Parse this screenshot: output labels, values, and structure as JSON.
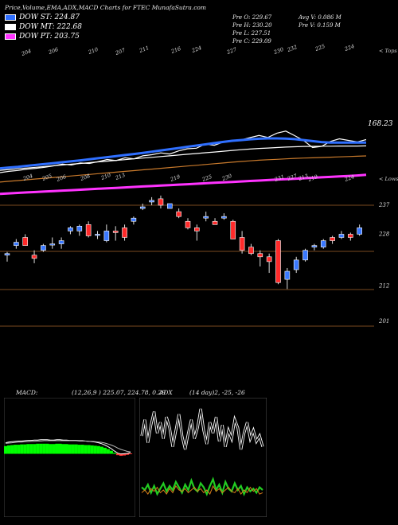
{
  "header": {
    "title": "Price,Volume,EMA,ADX,MACD Charts for FTEC MunafaSutra.com",
    "stats_left": [
      "Pre   O: 229.67",
      "Pre   H: 230.20",
      "Pre   L: 227.51",
      "Pre   C: 229.09"
    ],
    "stats_right": [
      "Avg V: 0.086  M",
      "Pre  V: 0.159  M"
    ]
  },
  "legend": [
    {
      "label": "DOW ST: 224.87",
      "color": "#2f6fff"
    },
    {
      "label": "DOW MT: 222.68",
      "color": "#ffffff"
    },
    {
      "label": "DOW PT: 203.75",
      "color": "#ff33ff"
    }
  ],
  "ema_panel": {
    "top_labels": [
      "204",
      "206",
      "210",
      "207",
      "211",
      "216",
      "224",
      "227",
      "230",
      "232",
      "225",
      "224"
    ],
    "bottom_labels": [
      "204",
      "205",
      "206",
      "208",
      "210",
      "213",
      "219",
      "225",
      "230",
      "231",
      "227",
      "213",
      "219",
      "224"
    ],
    "right_top_label": "< Tops",
    "right_bottom_label": "< Lows",
    "price_label": "168.23"
  },
  "chart_data": [
    {
      "type": "line",
      "title": "",
      "annotation": "168.23",
      "series": [
        {
          "name": "",
          "color": "#ffffff",
          "values": [
            205.2,
            206,
            206.6,
            207.5,
            208,
            208.7,
            209.6,
            210.7,
            210.2,
            211.5,
            211.2,
            212.4,
            213.8,
            213.1,
            214.9,
            214.2,
            216.2,
            216.9,
            218.1,
            217.4,
            219.4,
            220.8,
            221.2,
            223.9,
            223.1,
            225.2,
            226.4,
            226.6,
            228.1,
            229.5,
            228.2,
            231,
            232.4,
            229.4,
            226.2,
            221.6,
            222.3,
            225.6,
            227.3,
            226.3,
            225.3,
            226.8
          ]
        },
        {
          "name": "",
          "color": "#2f6fff",
          "values": [
            208,
            208.5,
            209,
            209.6,
            210.2,
            210.8,
            211.4,
            212,
            212.6,
            213.2,
            213.9,
            214.6,
            215.3,
            216,
            216.7,
            217.4,
            218.1,
            218.9,
            219.7,
            220.5,
            221.3,
            222.1,
            222.9,
            223.7,
            224.5,
            225.3,
            226,
            226.5,
            227,
            227.4,
            227.6,
            227.6,
            227.5,
            227.1,
            226.5,
            225.8,
            225.2,
            224.9,
            224.8,
            224.8,
            224.8,
            224.87
          ]
        },
        {
          "name": "",
          "color": "#ffffff",
          "values": [
            206.7,
            207.2,
            207.7,
            208.2,
            208.7,
            209.2,
            209.7,
            210.2,
            210.7,
            211.2,
            211.7,
            212.2,
            212.7,
            213.2,
            213.7,
            214.2,
            214.7,
            215.2,
            215.7,
            216.2,
            216.7,
            217.2,
            217.7,
            218.2,
            218.7,
            219.2,
            219.7,
            220.2,
            220.6,
            221,
            221.3,
            221.6,
            221.9,
            222.1,
            222.3,
            222.4,
            222.5,
            222.5,
            222.6,
            222.6,
            222.6,
            222.68
          ]
        },
        {
          "name": "",
          "color": "#c97a2c",
          "values": [
            199,
            199.5,
            200,
            200.5,
            201,
            201.5,
            202,
            202.5,
            203,
            203.5,
            204,
            204.5,
            205,
            205.5,
            206,
            206.5,
            207,
            207.5,
            208,
            208.5,
            209,
            209.5,
            210,
            210.5,
            211,
            211.5,
            212,
            212.5,
            212.9,
            213.3,
            213.6,
            213.9,
            214.2,
            214.5,
            214.7,
            214.9,
            215.1,
            215.3,
            215.5,
            215.7,
            215.9,
            216.1
          ]
        },
        {
          "name": "",
          "color": "#ff33ff",
          "values": [
            191.3,
            191.6,
            191.9,
            192.2,
            192.5,
            192.8,
            193.1,
            193.4,
            193.7,
            194,
            194.3,
            194.6,
            194.9,
            195.2,
            195.5,
            195.8,
            196.1,
            196.4,
            196.7,
            197,
            197.3,
            197.6,
            197.9,
            198.2,
            198.5,
            198.8,
            199.1,
            199.4,
            199.7,
            200,
            200.3,
            200.6,
            200.9,
            201.2,
            201.5,
            201.8,
            202.1,
            202.4,
            202.7,
            203,
            203.3,
            203.75
          ]
        }
      ]
    },
    {
      "type": "candlestick",
      "title": "",
      "y_ticks": [
        237,
        228,
        212,
        201
      ],
      "candles": [
        {
          "o": 221.5,
          "h": 222.5,
          "l": 219.5,
          "c": 222
        },
        {
          "o": 224.5,
          "h": 226.5,
          "l": 223.5,
          "c": 225.5
        },
        {
          "o": 227,
          "h": 228,
          "l": 224.5,
          "c": 224.5
        },
        {
          "o": 221.5,
          "h": 223,
          "l": 219,
          "c": 220.5
        },
        {
          "o": 223,
          "h": 225,
          "l": 222.5,
          "c": 224.5
        },
        {
          "o": 225,
          "h": 227,
          "l": 223.5,
          "c": 225
        },
        {
          "o": 225,
          "h": 227,
          "l": 223.5,
          "c": 226
        },
        {
          "o": 229,
          "h": 230.5,
          "l": 228,
          "c": 230
        },
        {
          "o": 229,
          "h": 231,
          "l": 227.5,
          "c": 230.5
        },
        {
          "o": 231,
          "h": 232,
          "l": 227,
          "c": 227.5
        },
        {
          "o": 228,
          "h": 229,
          "l": 226.5,
          "c": 228
        },
        {
          "o": 226,
          "h": 231,
          "l": 225.5,
          "c": 229
        },
        {
          "o": 229,
          "h": 230.5,
          "l": 226,
          "c": 228.5
        },
        {
          "o": 230,
          "h": 231,
          "l": 226,
          "c": 227
        },
        {
          "o": 232,
          "h": 233.5,
          "l": 231,
          "c": 233
        },
        {
          "o": 236,
          "h": 237.5,
          "l": 235.5,
          "c": 236.5
        },
        {
          "o": 238,
          "h": 239.5,
          "l": 237,
          "c": 238.5
        },
        {
          "o": 239,
          "h": 240,
          "l": 236,
          "c": 237
        },
        {
          "o": 236,
          "h": 237.5,
          "l": 236,
          "c": 237.5
        },
        {
          "o": 235,
          "h": 236,
          "l": 233,
          "c": 233.5
        },
        {
          "o": 232,
          "h": 233,
          "l": 229.5,
          "c": 230
        },
        {
          "o": 230,
          "h": 231,
          "l": 226,
          "c": 229
        },
        {
          "o": 233,
          "h": 235,
          "l": 232,
          "c": 233.5
        },
        {
          "o": 232,
          "h": 233,
          "l": 231,
          "c": 231
        },
        {
          "o": 233,
          "h": 234.5,
          "l": 232.5,
          "c": 233.5
        },
        {
          "o": 232,
          "h": 232.5,
          "l": 226.5,
          "c": 226.5
        },
        {
          "o": 227,
          "h": 229,
          "l": 222,
          "c": 223
        },
        {
          "o": 224,
          "h": 225,
          "l": 221.5,
          "c": 222
        },
        {
          "o": 222,
          "h": 223,
          "l": 218,
          "c": 221
        },
        {
          "o": 221,
          "h": 222,
          "l": 216,
          "c": 219.5
        },
        {
          "o": 226,
          "h": 226.5,
          "l": 212.5,
          "c": 213
        },
        {
          "o": 214,
          "h": 217.5,
          "l": 211,
          "c": 216.5
        },
        {
          "o": 217,
          "h": 221,
          "l": 216,
          "c": 220
        },
        {
          "o": 220,
          "h": 223.5,
          "l": 219.5,
          "c": 223
        },
        {
          "o": 224,
          "h": 225,
          "l": 223,
          "c": 224.5
        },
        {
          "o": 224,
          "h": 226.5,
          "l": 223.5,
          "c": 226
        },
        {
          "o": 227,
          "h": 227.5,
          "l": 225,
          "c": 226
        },
        {
          "o": 227,
          "h": 229,
          "l": 226.5,
          "c": 228
        },
        {
          "o": 228,
          "h": 228.5,
          "l": 226,
          "c": 227
        },
        {
          "o": 228,
          "h": 231,
          "l": 227.5,
          "c": 230
        }
      ]
    },
    {
      "type": "area",
      "title": "MACD:",
      "subtitle": "(12,26,9 ) 225.07,  224.78,  0.29",
      "x": [
        0,
        1,
        2,
        3,
        4,
        5,
        6,
        7,
        8,
        9,
        10,
        11,
        12,
        13,
        14,
        15,
        16,
        17,
        18,
        19,
        20,
        21,
        22,
        23,
        24,
        25,
        26,
        27,
        28,
        29,
        30,
        31,
        32,
        33,
        34,
        35,
        36,
        37,
        38,
        39
      ],
      "histogram": [
        2.2,
        2.4,
        2.5,
        2.6,
        2.6,
        2.7,
        2.7,
        2.8,
        2.8,
        2.8,
        2.9,
        2.9,
        2.9,
        2.9,
        2.8,
        2.8,
        2.9,
        2.9,
        2.8,
        2.8,
        2.7,
        2.7,
        2.7,
        2.6,
        2.6,
        2.5,
        2.5,
        2.4,
        2.3,
        2.2,
        2.0,
        1.7,
        1.3,
        0.8,
        0.2,
        -0.4,
        -0.6,
        -0.5,
        -0.3,
        -0.1
      ],
      "macd": [
        3.2,
        3.4,
        3.5,
        3.6,
        3.7,
        3.7,
        3.8,
        3.9,
        3.9,
        4.0,
        4.0,
        4.1,
        4.1,
        4.1,
        4.0,
        4.0,
        4.1,
        4.1,
        4.0,
        4.0,
        3.9,
        3.9,
        3.9,
        3.8,
        3.8,
        3.7,
        3.6,
        3.5,
        3.4,
        3.2,
        2.9,
        2.5,
        2.0,
        1.4,
        0.7,
        0.1,
        -0.2,
        -0.1,
        0.0,
        0.29
      ],
      "signal": [
        3.0,
        3.1,
        3.2,
        3.3,
        3.4,
        3.4,
        3.5,
        3.5,
        3.6,
        3.6,
        3.7,
        3.7,
        3.8,
        3.8,
        3.8,
        3.8,
        3.8,
        3.8,
        3.8,
        3.8,
        3.8,
        3.8,
        3.8,
        3.7,
        3.7,
        3.7,
        3.6,
        3.6,
        3.5,
        3.4,
        3.3,
        3.1,
        2.8,
        2.5,
        2.1,
        1.6,
        1.2,
        0.9,
        0.6,
        0.45
      ]
    },
    {
      "type": "line",
      "title": "ADX",
      "subtitle": "(14  day)2,  -25,  -26",
      "series": [
        {
          "name": "",
          "color": "#ffffff",
          "values": [
            60,
            72,
            55,
            68,
            78,
            62,
            70,
            58,
            74,
            66,
            52,
            64,
            76,
            60,
            50,
            62,
            72,
            58,
            66,
            80,
            64,
            54,
            70,
            62,
            74,
            56,
            68,
            52,
            64,
            58,
            72,
            66,
            50,
            62,
            70,
            58,
            64,
            56,
            60,
            52
          ]
        },
        {
          "name": "",
          "color": "#22cc22",
          "values": [
            22,
            20,
            24,
            18,
            23,
            17,
            21,
            25,
            19,
            23,
            20,
            26,
            22,
            18,
            24,
            20,
            27,
            21,
            19,
            25,
            22,
            17,
            23,
            28,
            20,
            24,
            18,
            26,
            21,
            19,
            25,
            20,
            23,
            17,
            22,
            19,
            21,
            18,
            22,
            20
          ]
        },
        {
          "name": "",
          "color": "#d87a1a",
          "values": [
            18,
            20,
            17,
            21,
            19,
            22,
            18,
            20,
            17,
            21,
            18,
            23,
            20,
            19,
            21,
            18,
            20,
            22,
            19,
            21,
            18,
            20,
            17,
            23,
            19,
            21,
            18,
            20,
            22,
            19,
            18,
            21,
            17,
            20,
            18,
            22,
            19,
            21,
            17,
            18
          ]
        }
      ]
    }
  ]
}
